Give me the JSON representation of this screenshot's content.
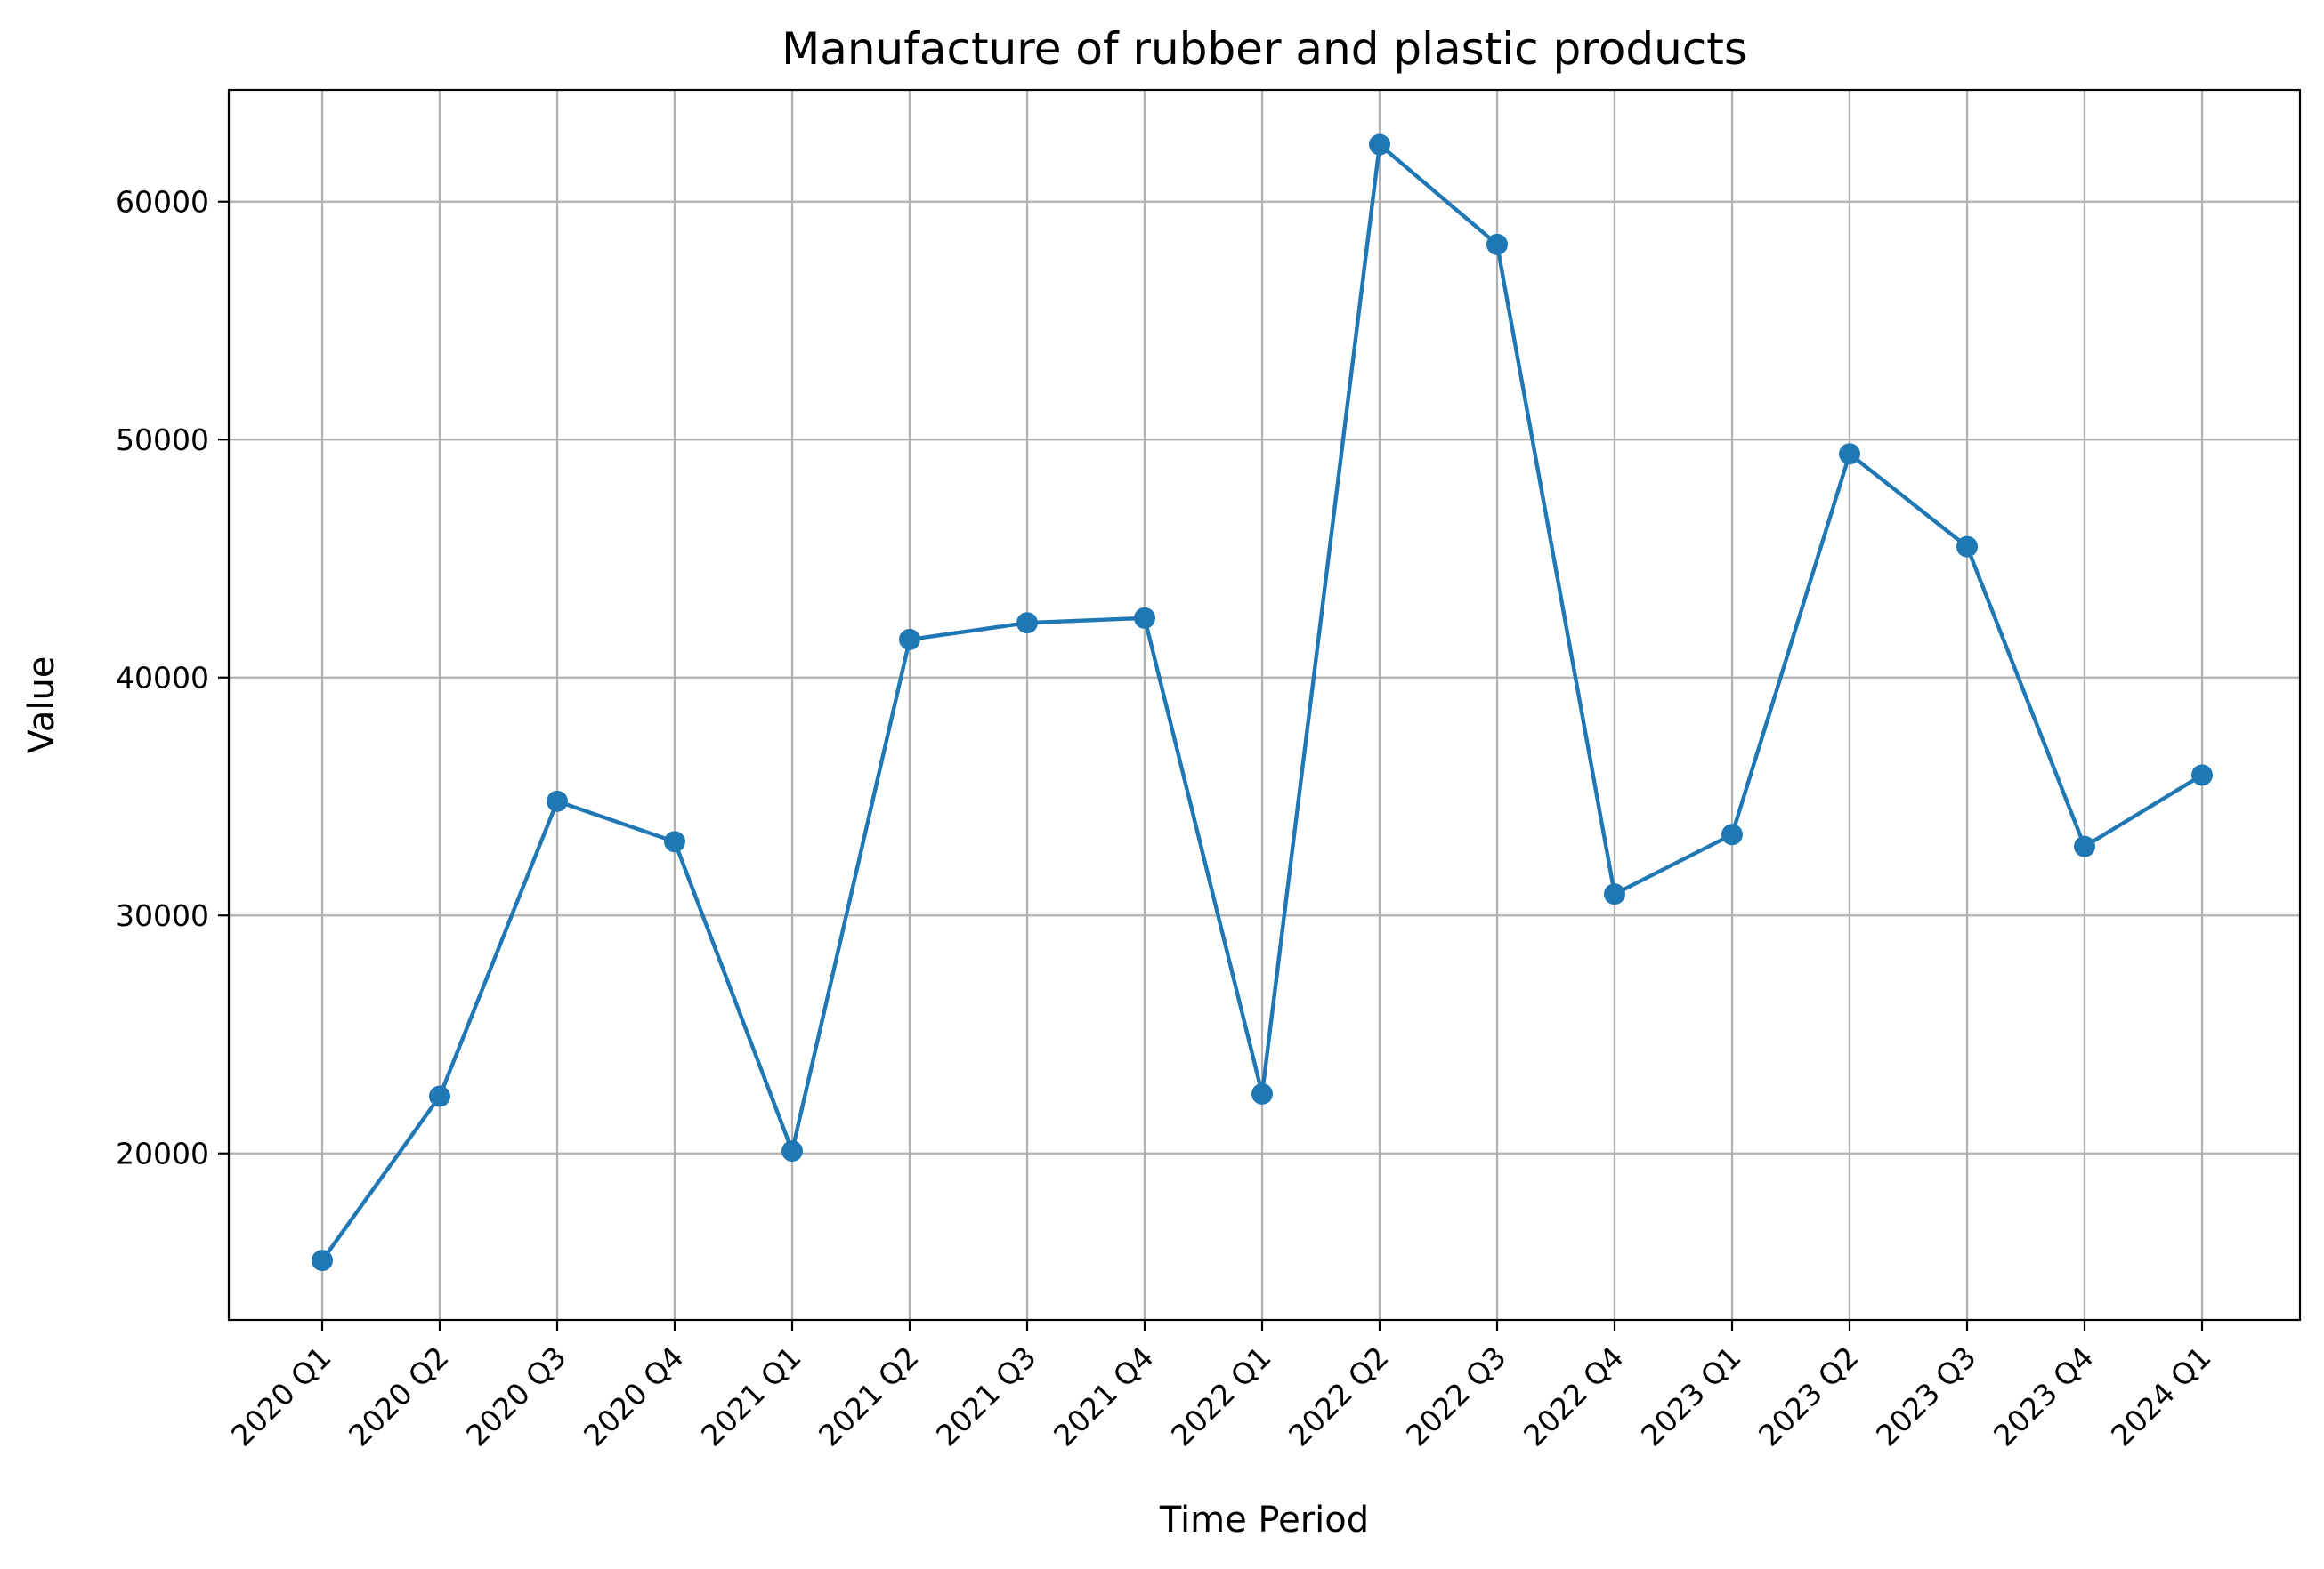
{
  "chart_data": {
    "type": "line",
    "title": "Manufacture of rubber and plastic products",
    "xlabel": "Time Period",
    "ylabel": "Value",
    "categories": [
      "2020 Q1",
      "2020 Q2",
      "2020 Q3",
      "2020 Q4",
      "2021 Q1",
      "2021 Q2",
      "2021 Q3",
      "2021 Q4",
      "2022 Q1",
      "2022 Q2",
      "2022 Q3",
      "2022 Q4",
      "2023 Q1",
      "2023 Q2",
      "2023 Q3",
      "2023 Q4",
      "2024 Q1"
    ],
    "series": [
      {
        "values": [
          15500,
          22400,
          34800,
          33100,
          20100,
          41600,
          42300,
          42500,
          22500,
          62400,
          58200,
          30900,
          33400,
          49400,
          45500,
          32900,
          35900
        ],
        "color": "#1f77b4",
        "marker": "circle"
      }
    ],
    "yticks": [
      20000,
      30000,
      40000,
      50000,
      60000
    ],
    "ytick_labels": [
      "20000",
      "30000",
      "40000",
      "50000",
      "60000"
    ],
    "ylim": [
      13000,
      64700
    ],
    "grid": true,
    "legend": "none"
  }
}
